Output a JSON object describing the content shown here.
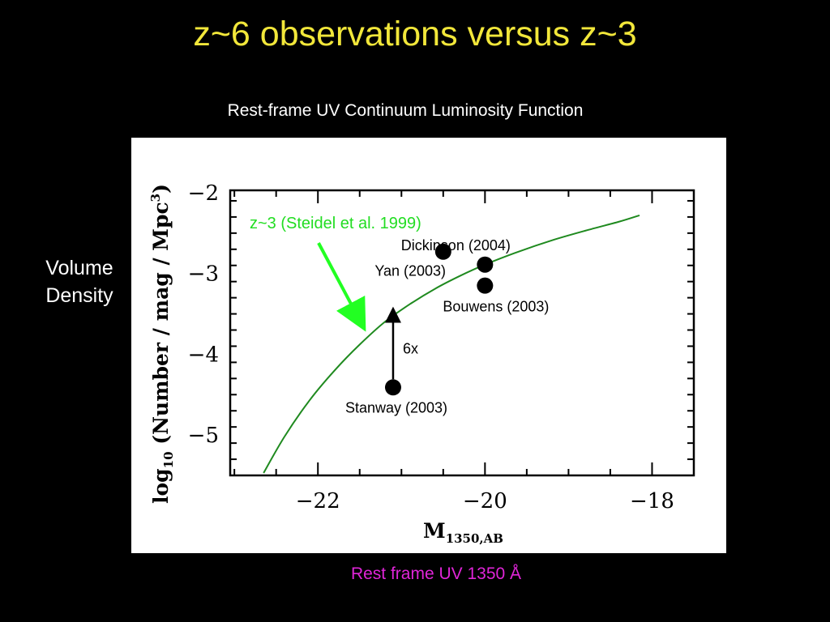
{
  "slide": {
    "title": "z~6 observations versus z~3",
    "subtitle": "Rest-frame UV Continuum Luminosity Function",
    "side_label_line1": "Volume",
    "side_label_line2": "Density",
    "footer": "Rest frame UV 1350 Å"
  },
  "colors": {
    "background": "#000000",
    "title": "#f2e73a",
    "footer": "#e025d8",
    "curve": "#1f8a1f",
    "curve_label": "#22dd22",
    "arrow": "#22ff22"
  },
  "chart_data": {
    "type": "scatter",
    "xlabel_main": "M",
    "xlabel_sub": "1350,AB",
    "ylabel_main": "log",
    "ylabel_sub": "10",
    "ylabel_rest": " (Number / mag / Mpc",
    "ylabel_sup": "3",
    "ylabel_end": ")",
    "xlim": [
      -23.05,
      -17.5
    ],
    "ylim": [
      -5.5,
      -1.97
    ],
    "x_ticks": [
      -22,
      -20,
      -18
    ],
    "x_tick_labels": [
      "−22",
      "−20",
      "−18"
    ],
    "y_ticks": [
      -2,
      -3,
      -4,
      -5
    ],
    "y_tick_labels": [
      "−2",
      "−3",
      "−4",
      "−5"
    ],
    "grid": false,
    "series": [
      {
        "name": "z~3 (Steidel et al. 1999)",
        "type": "line",
        "x": [
          -22.65,
          -22.4,
          -22.1,
          -21.8,
          -21.5,
          -21.2,
          -20.9,
          -20.6,
          -20.3,
          -20.0,
          -19.6,
          -19.2,
          -18.8,
          -18.4,
          -18.15
        ],
        "y": [
          -5.47,
          -5.02,
          -4.57,
          -4.2,
          -3.88,
          -3.6,
          -3.38,
          -3.19,
          -3.03,
          -2.89,
          -2.73,
          -2.59,
          -2.47,
          -2.36,
          -2.28
        ]
      }
    ],
    "points": [
      {
        "label": "Dickinson (2004)",
        "x": -20.5,
        "y": -2.73
      },
      {
        "label": "Yan (2003)",
        "x": -20.0,
        "y": -2.89
      },
      {
        "label": "Bouwens (2003)",
        "x": -20.0,
        "y": -3.15
      },
      {
        "label": "Stanway (2003)",
        "x": -21.1,
        "y": -4.41
      }
    ],
    "arrow_annotation": {
      "label": "6x",
      "x": -21.1,
      "y_from": -4.41,
      "y_to": -3.47
    }
  }
}
